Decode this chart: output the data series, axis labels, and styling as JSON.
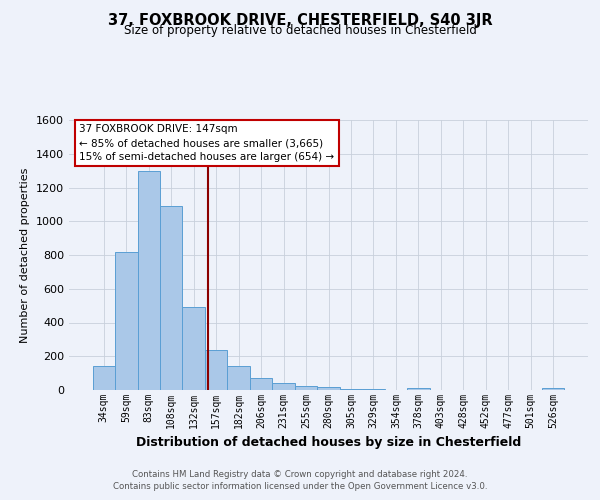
{
  "title": "37, FOXBROOK DRIVE, CHESTERFIELD, S40 3JR",
  "subtitle": "Size of property relative to detached houses in Chesterfield",
  "xlabel": "Distribution of detached houses by size in Chesterfield",
  "ylabel": "Number of detached properties",
  "footnote1": "Contains HM Land Registry data © Crown copyright and database right 2024.",
  "footnote2": "Contains public sector information licensed under the Open Government Licence v3.0.",
  "bin_labels": [
    "34sqm",
    "59sqm",
    "83sqm",
    "108sqm",
    "132sqm",
    "157sqm",
    "182sqm",
    "206sqm",
    "231sqm",
    "255sqm",
    "280sqm",
    "305sqm",
    "329sqm",
    "354sqm",
    "378sqm",
    "403sqm",
    "428sqm",
    "452sqm",
    "477sqm",
    "501sqm",
    "526sqm"
  ],
  "bar_heights": [
    140,
    815,
    1300,
    1090,
    490,
    235,
    140,
    70,
    42,
    22,
    15,
    8,
    3,
    0,
    12,
    0,
    0,
    0,
    0,
    0,
    10
  ],
  "bar_color": "#aac8e8",
  "bar_edge_color": "#5a9fd4",
  "ylim": [
    0,
    1600
  ],
  "yticks": [
    0,
    200,
    400,
    600,
    800,
    1000,
    1200,
    1400,
    1600
  ],
  "property_line_x": 4.63,
  "property_line_color": "#8b0000",
  "annotation_line1": "37 FOXBROOK DRIVE: 147sqm",
  "annotation_line2": "← 85% of detached houses are smaller (3,665)",
  "annotation_line3": "15% of semi-detached houses are larger (654) →",
  "annotation_box_color": "#ffffff",
  "annotation_border_color": "#c00000",
  "bg_color": "#eef2fa",
  "grid_color": "#c8d0dc",
  "title_fontsize": 10.5,
  "subtitle_fontsize": 8.5
}
